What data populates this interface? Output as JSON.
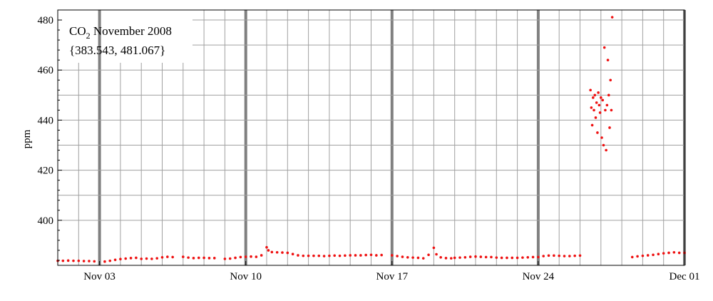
{
  "chart_data": {
    "type": "scatter",
    "title_base": "CO",
    "title_sub": "2",
    "title_rest": " November 2008",
    "subtitle": "{383.543, 481.067}",
    "ylabel": "ppm",
    "xlabel": "",
    "xlim": [
      "2008-11-01T00:00",
      "2008-12-01T00:00"
    ],
    "ylim": [
      382,
      484
    ],
    "x_ticks": [
      {
        "date": "2008-11-03",
        "label": "Nov 03"
      },
      {
        "date": "2008-11-10",
        "label": "Nov 10"
      },
      {
        "date": "2008-11-17",
        "label": "Nov 17"
      },
      {
        "date": "2008-11-24",
        "label": "Nov 24"
      },
      {
        "date": "2008-12-01",
        "label": "Dec 01"
      }
    ],
    "y_ticks": [
      400,
      420,
      440,
      460,
      480
    ],
    "grid": true,
    "marker_color": "#ee1111",
    "major_grid_color": "#808080",
    "minor_grid_color": "#a0a0a0",
    "series": [
      {
        "points": [
          [
            "2008-11-01T00:00",
            383.8
          ],
          [
            "2008-11-01T06:00",
            383.8
          ],
          [
            "2008-11-01T12:00",
            383.9
          ],
          [
            "2008-11-01T18:00",
            383.8
          ],
          [
            "2008-11-02T00:00",
            383.8
          ],
          [
            "2008-11-02T06:00",
            383.7
          ],
          [
            "2008-11-02T12:00",
            383.7
          ],
          [
            "2008-11-02T18:00",
            383.6
          ],
          [
            "2008-11-03T06:00",
            383.5
          ],
          [
            "2008-11-03T12:00",
            383.8
          ],
          [
            "2008-11-03T18:00",
            384.2
          ],
          [
            "2008-11-04T00:00",
            384.5
          ],
          [
            "2008-11-04T06:00",
            384.7
          ],
          [
            "2008-11-04T12:00",
            384.9
          ],
          [
            "2008-11-04T18:00",
            385.0
          ],
          [
            "2008-11-05T00:00",
            384.6
          ],
          [
            "2008-11-05T06:00",
            384.7
          ],
          [
            "2008-11-05T12:00",
            384.6
          ],
          [
            "2008-11-05T18:00",
            384.8
          ],
          [
            "2008-11-06T00:00",
            385.2
          ],
          [
            "2008-11-06T06:00",
            385.4
          ],
          [
            "2008-11-06T12:00",
            385.3
          ],
          [
            "2008-11-07T00:00",
            385.4
          ],
          [
            "2008-11-07T06:00",
            385.1
          ],
          [
            "2008-11-07T12:00",
            384.9
          ],
          [
            "2008-11-07T18:00",
            385.0
          ],
          [
            "2008-11-08T00:00",
            385.0
          ],
          [
            "2008-11-08T06:00",
            384.9
          ],
          [
            "2008-11-08T12:00",
            384.9
          ],
          [
            "2008-11-09T00:00",
            384.6
          ],
          [
            "2008-11-09T06:00",
            384.7
          ],
          [
            "2008-11-09T12:00",
            385.0
          ],
          [
            "2008-11-09T18:00",
            385.3
          ],
          [
            "2008-11-10T00:00",
            385.4
          ],
          [
            "2008-11-10T06:00",
            385.5
          ],
          [
            "2008-11-10T12:00",
            385.4
          ],
          [
            "2008-11-10T18:00",
            386.0
          ],
          [
            "2008-11-11T00:00",
            389.2
          ],
          [
            "2008-11-11T02:00",
            388.0
          ],
          [
            "2008-11-11T06:00",
            387.3
          ],
          [
            "2008-11-11T12:00",
            387.2
          ],
          [
            "2008-11-11T18:00",
            387.1
          ],
          [
            "2008-11-12T00:00",
            387.0
          ],
          [
            "2008-11-12T06:00",
            386.5
          ],
          [
            "2008-11-12T12:00",
            386.0
          ],
          [
            "2008-11-12T18:00",
            385.8
          ],
          [
            "2008-11-13T00:00",
            385.8
          ],
          [
            "2008-11-13T06:00",
            385.8
          ],
          [
            "2008-11-13T12:00",
            385.8
          ],
          [
            "2008-11-13T18:00",
            385.7
          ],
          [
            "2008-11-14T00:00",
            385.8
          ],
          [
            "2008-11-14T06:00",
            385.9
          ],
          [
            "2008-11-14T12:00",
            385.8
          ],
          [
            "2008-11-14T18:00",
            385.9
          ],
          [
            "2008-11-15T00:00",
            386.0
          ],
          [
            "2008-11-15T06:00",
            386.0
          ],
          [
            "2008-11-15T12:00",
            386.0
          ],
          [
            "2008-11-15T18:00",
            386.1
          ],
          [
            "2008-11-16T00:00",
            386.2
          ],
          [
            "2008-11-16T06:00",
            386.0
          ],
          [
            "2008-11-16T12:00",
            386.1
          ],
          [
            "2008-11-17T00:00",
            386.0
          ],
          [
            "2008-11-17T06:00",
            385.7
          ],
          [
            "2008-11-17T12:00",
            385.4
          ],
          [
            "2008-11-17T18:00",
            385.2
          ],
          [
            "2008-11-18T00:00",
            385.1
          ],
          [
            "2008-11-18T06:00",
            385.0
          ],
          [
            "2008-11-18T12:00",
            384.8
          ],
          [
            "2008-11-18T18:00",
            386.2
          ],
          [
            "2008-11-19T00:00",
            389.0
          ],
          [
            "2008-11-19T03:00",
            386.4
          ],
          [
            "2008-11-19T08:00",
            385.2
          ],
          [
            "2008-11-19T14:00",
            384.9
          ],
          [
            "2008-11-19T20:00",
            384.8
          ],
          [
            "2008-11-20T00:00",
            385.0
          ],
          [
            "2008-11-20T06:00",
            385.1
          ],
          [
            "2008-11-20T12:00",
            385.2
          ],
          [
            "2008-11-20T18:00",
            385.4
          ],
          [
            "2008-11-21T00:00",
            385.5
          ],
          [
            "2008-11-21T06:00",
            385.4
          ],
          [
            "2008-11-21T12:00",
            385.3
          ],
          [
            "2008-11-21T18:00",
            385.3
          ],
          [
            "2008-11-22T00:00",
            385.1
          ],
          [
            "2008-11-22T06:00",
            385.0
          ],
          [
            "2008-11-22T12:00",
            385.0
          ],
          [
            "2008-11-22T18:00",
            385.0
          ],
          [
            "2008-11-23T00:00",
            385.0
          ],
          [
            "2008-11-23T06:00",
            385.1
          ],
          [
            "2008-11-23T12:00",
            385.2
          ],
          [
            "2008-11-23T18:00",
            385.3
          ],
          [
            "2008-11-24T00:00",
            385.3
          ],
          [
            "2008-11-24T06:00",
            385.7
          ],
          [
            "2008-11-24T12:00",
            385.9
          ],
          [
            "2008-11-24T18:00",
            385.9
          ],
          [
            "2008-11-25T00:00",
            385.8
          ],
          [
            "2008-11-25T06:00",
            385.7
          ],
          [
            "2008-11-25T12:00",
            385.7
          ],
          [
            "2008-11-25T18:00",
            385.8
          ],
          [
            "2008-11-26T00:00",
            385.9
          ],
          [
            "2008-11-26T12:00",
            452.0
          ],
          [
            "2008-11-26T13:00",
            445.0
          ],
          [
            "2008-11-26T14:00",
            438.0
          ],
          [
            "2008-11-26T15:00",
            449.0
          ],
          [
            "2008-11-26T16:00",
            444.0
          ],
          [
            "2008-11-26T17:00",
            450.0
          ],
          [
            "2008-11-26T18:00",
            441.0
          ],
          [
            "2008-11-26T19:00",
            447.0
          ],
          [
            "2008-11-26T20:00",
            435.0
          ],
          [
            "2008-11-26T21:00",
            451.0
          ],
          [
            "2008-11-26T22:00",
            446.0
          ],
          [
            "2008-11-26T23:00",
            443.0
          ],
          [
            "2008-11-27T00:00",
            449.0
          ],
          [
            "2008-11-27T01:00",
            433.0
          ],
          [
            "2008-11-27T02:00",
            448.0
          ],
          [
            "2008-11-27T03:00",
            430.0
          ],
          [
            "2008-11-27T04:00",
            469.0
          ],
          [
            "2008-11-27T05:00",
            444.0
          ],
          [
            "2008-11-27T06:00",
            428.0
          ],
          [
            "2008-11-27T07:00",
            446.0
          ],
          [
            "2008-11-27T08:00",
            464.0
          ],
          [
            "2008-11-27T09:00",
            450.0
          ],
          [
            "2008-11-27T10:00",
            437.0
          ],
          [
            "2008-11-27T11:00",
            456.0
          ],
          [
            "2008-11-27T12:00",
            444.0
          ],
          [
            "2008-11-27T13:00",
            481.1
          ],
          [
            "2008-11-28T12:00",
            385.3
          ],
          [
            "2008-11-28T18:00",
            385.6
          ],
          [
            "2008-11-29T00:00",
            385.8
          ],
          [
            "2008-11-29T06:00",
            386.0
          ],
          [
            "2008-11-29T12:00",
            386.2
          ],
          [
            "2008-11-29T18:00",
            386.5
          ],
          [
            "2008-11-30T00:00",
            386.8
          ],
          [
            "2008-11-30T06:00",
            387.0
          ],
          [
            "2008-11-30T12:00",
            387.2
          ],
          [
            "2008-11-30T18:00",
            387.0
          ],
          [
            "2008-11-31T00:00",
            387.0
          ]
        ]
      }
    ]
  }
}
